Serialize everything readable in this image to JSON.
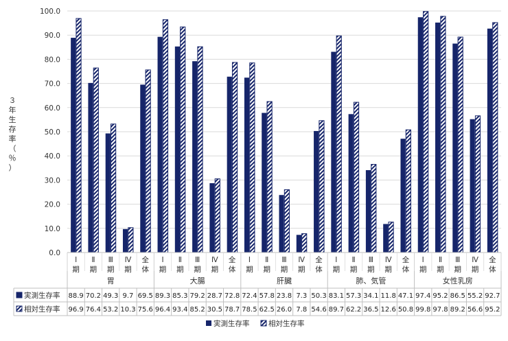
{
  "chart_data": {
    "type": "bar",
    "ylabel": "３年生存率（％）",
    "ylim": [
      0,
      100
    ],
    "yticks": [
      "0.0",
      "10.0",
      "20.0",
      "30.0",
      "40.0",
      "50.0",
      "60.0",
      "70.0",
      "80.0",
      "90.0",
      "100.0"
    ],
    "grid": true,
    "legend_position": "bottom",
    "groups": [
      {
        "name": "胃",
        "stages": [
          "Ⅰ期",
          "Ⅱ期",
          "Ⅲ期",
          "Ⅳ期",
          "全体"
        ]
      },
      {
        "name": "大腸",
        "stages": [
          "Ⅰ期",
          "Ⅱ期",
          "Ⅲ期",
          "Ⅳ期",
          "全体"
        ]
      },
      {
        "name": "肝臓",
        "stages": [
          "Ⅰ期",
          "Ⅱ期",
          "Ⅲ期",
          "Ⅳ期",
          "全体"
        ]
      },
      {
        "name": "肺、気管",
        "stages": [
          "Ⅰ期",
          "Ⅱ期",
          "Ⅲ期",
          "Ⅳ期",
          "全体"
        ]
      },
      {
        "name": "女性乳房",
        "stages": [
          "Ⅰ期",
          "Ⅱ期",
          "Ⅲ期",
          "Ⅳ期",
          "全体"
        ]
      }
    ],
    "series": [
      {
        "name": "実測生存率",
        "color": "#16256a",
        "pattern": "solid",
        "values": [
          88.9,
          70.2,
          49.3,
          9.7,
          69.5,
          89.3,
          85.3,
          79.2,
          28.7,
          72.8,
          72.4,
          57.8,
          23.8,
          7.3,
          50.3,
          83.1,
          57.3,
          34.1,
          11.8,
          47.1,
          97.4,
          95.2,
          86.5,
          55.2,
          92.7
        ]
      },
      {
        "name": "相対生存率",
        "color": "#16256a",
        "pattern": "diagonal-stripes",
        "values": [
          96.9,
          76.4,
          53.2,
          10.3,
          75.6,
          96.4,
          93.4,
          85.2,
          30.5,
          78.7,
          78.5,
          62.5,
          26.0,
          7.8,
          54.6,
          89.7,
          62.2,
          36.5,
          12.6,
          50.8,
          99.8,
          97.8,
          89.2,
          56.6,
          95.2
        ]
      }
    ]
  }
}
